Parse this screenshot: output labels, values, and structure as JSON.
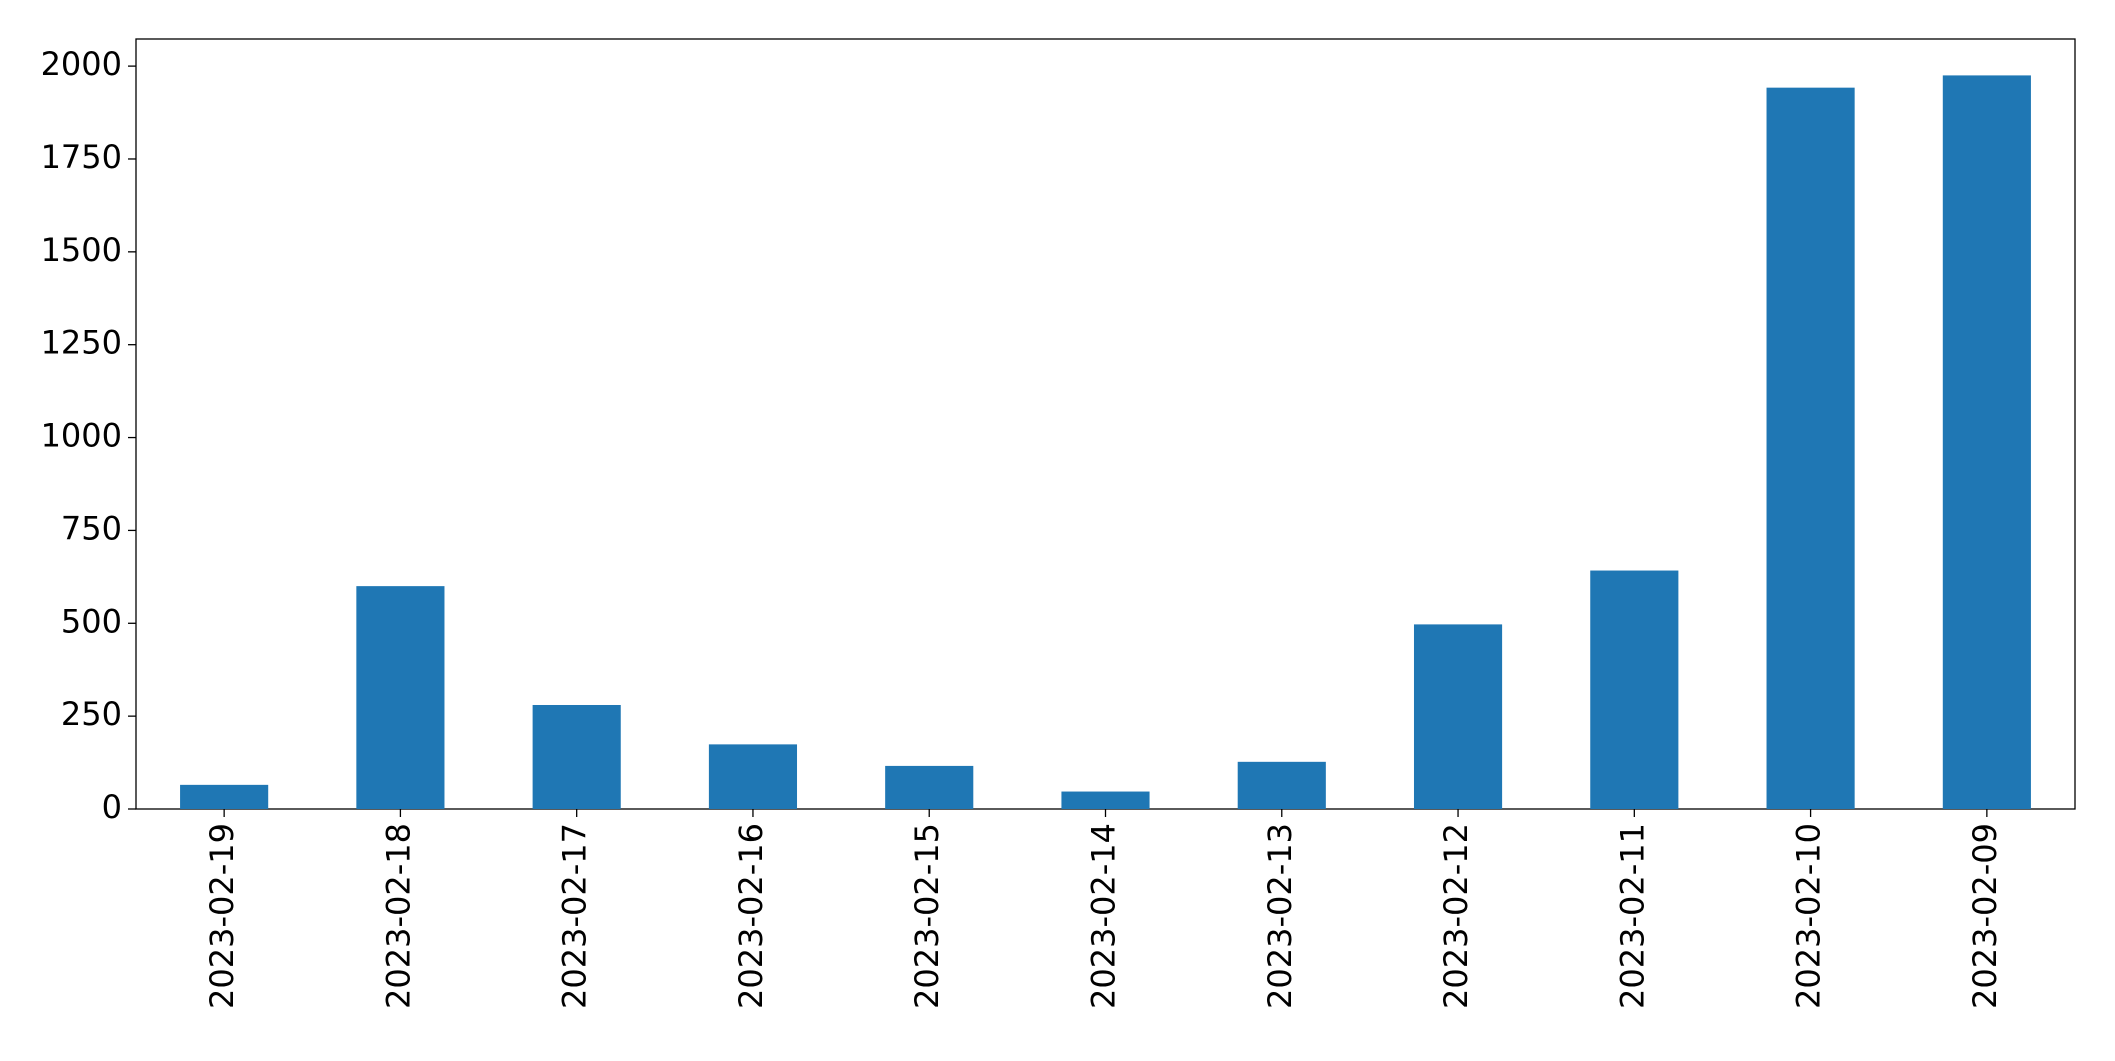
{
  "chart_data": {
    "type": "bar",
    "categories": [
      "2023-02-19",
      "2023-02-18",
      "2023-02-17",
      "2023-02-16",
      "2023-02-15",
      "2023-02-14",
      "2023-02-13",
      "2023-02-12",
      "2023-02-11",
      "2023-02-10",
      "2023-02-09"
    ],
    "values": [
      65,
      600,
      280,
      174,
      116,
      47,
      127,
      497,
      642,
      1942,
      1975
    ],
    "color": "#1f77b4",
    "ylim": [
      0,
      2073
    ],
    "yticks": [
      0,
      250,
      500,
      750,
      1000,
      1250,
      1500,
      1750,
      2000
    ],
    "grid": false
  }
}
